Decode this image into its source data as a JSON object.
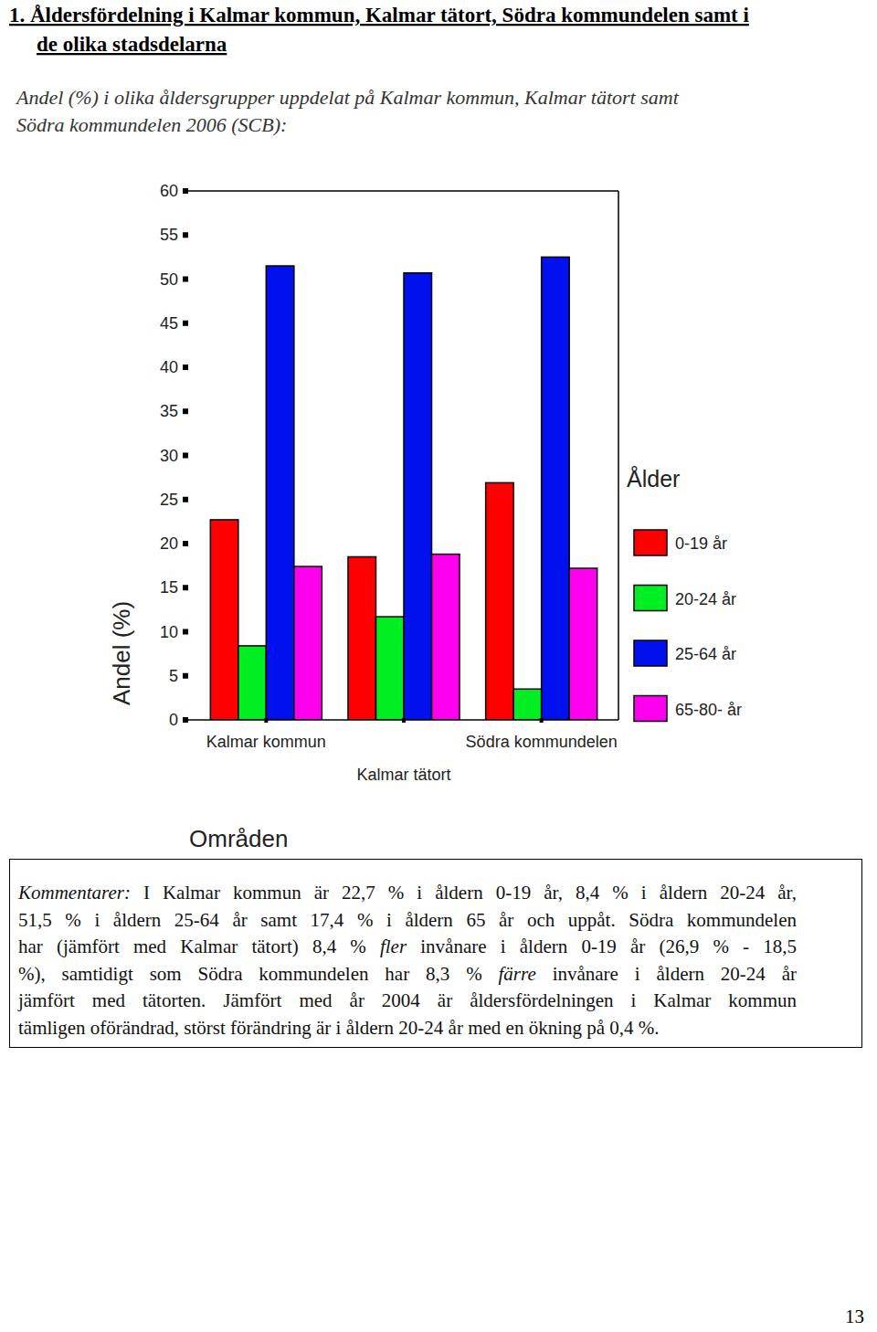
{
  "heading": [
    "1. Åldersfördelning i Kalmar kommun, Kalmar tätort, Södra kommundelen samt i",
    "de olika stadsdelarna"
  ],
  "chart_data": {
    "type": "bar",
    "title": [
      "Andel (%) i olika åldersgrupper uppdelat på Kalmar kommun, Kalmar tätort samt",
      "Södra kommundelen 2006 (SCB):"
    ],
    "xlabel": "Områden",
    "ylabel": "Andel (%)",
    "legend_title": "Ålder",
    "legend": "right",
    "categories": [
      "Kalmar kommun",
      "Kalmar tätort",
      "Södra kommundelen"
    ],
    "series": [
      {
        "name": "0-19 år",
        "color": "#ff0000",
        "values": [
          22.7,
          18.5,
          26.9
        ]
      },
      {
        "name": "20-24 år",
        "color": "#00ee22",
        "values": [
          8.4,
          11.7,
          3.5
        ]
      },
      {
        "name": "25-64 år",
        "color": "#0011ee",
        "values": [
          51.5,
          50.7,
          52.5
        ]
      },
      {
        "name": "65-80- år",
        "color": "#ff00ee",
        "values": [
          17.4,
          18.8,
          17.2
        ]
      }
    ],
    "ylim": [
      0,
      60
    ],
    "yticks": [
      0,
      5,
      10,
      15,
      20,
      25,
      30,
      35,
      40,
      45,
      50,
      55,
      60
    ],
    "grid": false
  },
  "comment": {
    "lines": [
      [
        {
          "text": "Kommentarer:",
          "style": "italic"
        },
        " I Kalmar kommun är 22,7 % i åldern 0-19 år, 8,4 % i åldern 20-24 år,"
      ],
      [
        "51,5 % i åldern 25-64 år samt 17,4 % i åldern 65 år och uppåt. Södra kommundelen"
      ],
      [
        "har (jämfört med Kalmar tätort) 8,4 % ",
        {
          "text": "fler",
          "style": "italic"
        },
        " invånare i åldern 0-19 år (26,9 % - 18,5"
      ],
      [
        "%), samtidigt som Södra kommundelen har 8,3 % ",
        {
          "text": "färre",
          "style": "italic"
        },
        " invånare i åldern 20-24 år"
      ],
      [
        "jämfört med tätorten. Jämfört med år 2004 är åldersfördelningen i Kalmar kommun"
      ],
      [
        "tämligen oförändrad, störst förändring är i åldern 20-24 år med en ökning på 0,4 %."
      ]
    ]
  },
  "page_number": "13"
}
